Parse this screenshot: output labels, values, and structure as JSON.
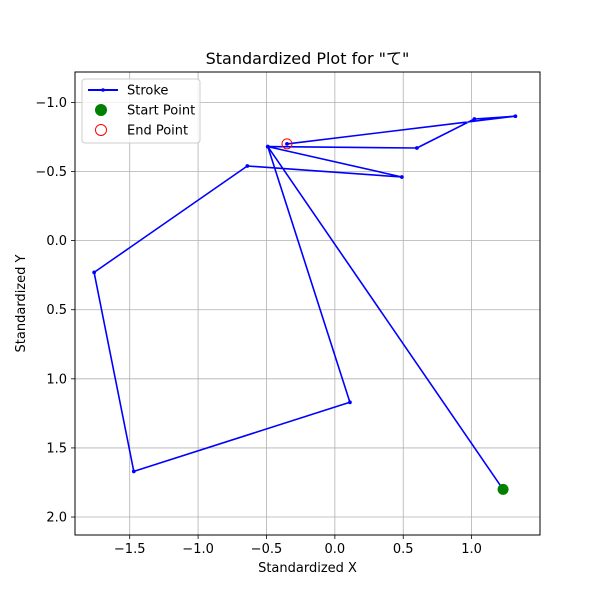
{
  "chart_data": {
    "type": "line",
    "title": "Standardized Plot for \"て\"",
    "xlabel": "Standardized X",
    "ylabel": "Standardized Y",
    "xlim": [
      -1.9,
      1.5
    ],
    "ylim": [
      2.13,
      -1.22
    ],
    "y_inverted": true,
    "grid": true,
    "legend_position": "top-left",
    "xticks": [
      -1.5,
      -1.0,
      -0.5,
      0.0,
      0.5,
      1.0
    ],
    "xtick_labels": [
      "−1.5",
      "−1.0",
      "−0.5",
      "0.0",
      "0.5",
      "1.0"
    ],
    "yticks": [
      -1.0,
      -0.5,
      0.0,
      0.5,
      1.0,
      1.5,
      2.0
    ],
    "ytick_labels": [
      "−1.0",
      "−0.5",
      "0.0",
      "0.5",
      "1.0",
      "1.5",
      "2.0"
    ],
    "series": [
      {
        "name": "Stroke",
        "color": "#0000ff",
        "x": [
          1.23,
          -0.49,
          0.11,
          -1.47,
          -1.76,
          -0.64,
          0.49,
          -0.49,
          0.6,
          1.02,
          1.32,
          -0.35
        ],
        "y": [
          1.8,
          -0.68,
          1.17,
          1.67,
          0.23,
          -0.54,
          -0.46,
          -0.68,
          -0.67,
          -0.88,
          -0.9,
          -0.7
        ]
      }
    ],
    "start_point": {
      "name": "Start Point",
      "x": 1.23,
      "y": 1.8,
      "color": "#008000"
    },
    "end_point": {
      "name": "End Point",
      "x": -0.35,
      "y": -0.7,
      "color": "#ff0000"
    }
  }
}
